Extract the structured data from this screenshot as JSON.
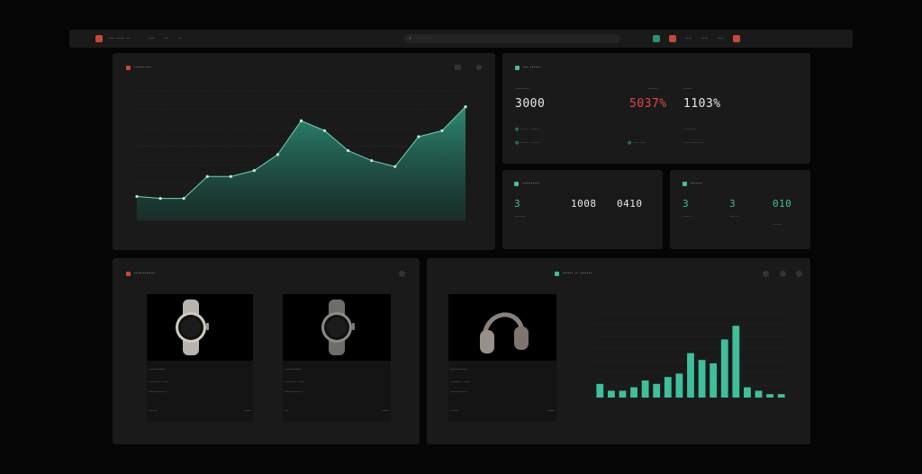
{
  "topbar": {
    "brand": "··· ···· ··",
    "links": [
      "····",
      "···",
      "··"
    ],
    "search_placeholder": "············",
    "right_items": [
      "····",
      "····",
      "····"
    ]
  },
  "revenue_panel": {
    "title": "··········",
    "chart_data": {
      "type": "area",
      "x": [
        1,
        2,
        3,
        4,
        5,
        6,
        7,
        8,
        9,
        10,
        11,
        12,
        13,
        14,
        15
      ],
      "values": [
        12,
        11,
        11,
        22,
        22,
        25,
        33,
        50,
        45,
        35,
        30,
        27,
        42,
        45,
        57
      ],
      "ylim": [
        0,
        65
      ],
      "color": "#3aa88a",
      "grid": true
    }
  },
  "kpi_panel": {
    "title": "··· ······",
    "kpis": [
      {
        "label": "··········",
        "value": "3000",
        "color": "#e8e8e8",
        "sub": "······ ······"
      },
      {
        "label": "·······",
        "value": "5037%",
        "color": "#e04848",
        "sub": "·········"
      },
      {
        "label": "······",
        "value": "1103%",
        "color": "#e8e8e8",
        "sub": "···· ·········"
      }
    ]
  },
  "stats_panel": {
    "title": "··········",
    "values": [
      {
        "value": "3",
        "color": "#3fbf9c",
        "sub": "········"
      },
      {
        "value": "1008",
        "color": "#e8e8e8"
      },
      {
        "value": "0410",
        "color": "#e8e8e8"
      }
    ]
  },
  "mini_panel": {
    "title": "·······",
    "values": [
      {
        "value": "3",
        "color": "#3fbf9c",
        "sub": "·······"
      },
      {
        "value": "3",
        "color": "#3fbf9c",
        "sub": "·······"
      },
      {
        "value": "010",
        "color": "#3fbf9c",
        "sub": "······"
      }
    ]
  },
  "products_panel": {
    "title": "············",
    "products": [
      {
        "name": "············",
        "line2": "········ ·····",
        "line3": "············",
        "tag": "······",
        "price": "·····"
      },
      {
        "name": "············",
        "line2": "········ ·····",
        "line3": "············",
        "tag": "···",
        "price": "·····"
      },
      {
        "name": "············",
        "line2": "········ ·····",
        "line3": "············",
        "tag": "······",
        "price": "·····"
      }
    ]
  },
  "sales_panel": {
    "title": "······ ·· ·······",
    "chart_data": {
      "type": "bar",
      "values": [
        4,
        2,
        2,
        3,
        5,
        4,
        6,
        7,
        13,
        11,
        10,
        17,
        21,
        3,
        2,
        1,
        1
      ],
      "ylim": [
        0,
        25
      ],
      "color": "#3fbf9c"
    }
  },
  "colors": {
    "accent": "#3fbf9c",
    "danger": "#e04848",
    "panel": "#1a1a1a"
  }
}
